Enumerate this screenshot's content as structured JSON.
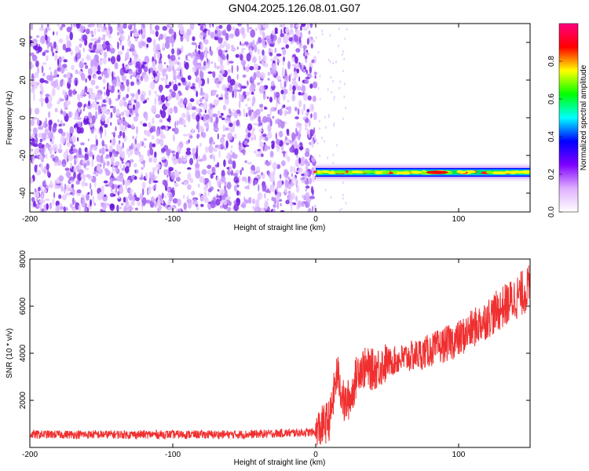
{
  "title": "GN04.2025.126.08.01.G07",
  "colors": {
    "snr_line": "#f03030",
    "noise": "#8a2be2",
    "colormap": [
      "#ffffff",
      "#e0b0ff",
      "#8000ff",
      "#0000ff",
      "#00ffff",
      "#00ff00",
      "#ffff00",
      "#ff0000",
      "#ff0080"
    ]
  },
  "chart_data": [
    {
      "type": "heatmap",
      "xlabel": "Height of straight line (km)",
      "ylabel": "Frequency (Hz)",
      "xlim": [
        -200,
        150
      ],
      "ylim": [
        -50,
        50
      ],
      "xticks": [
        -200,
        -100,
        0,
        100
      ],
      "yticks": [
        -40,
        -20,
        0,
        20,
        40
      ],
      "colorbar": {
        "label": "Normalized spectral amplitude",
        "range": [
          0,
          1
        ],
        "ticks": [
          "0.0",
          "0.2",
          "0.4",
          "0.6",
          "0.8"
        ]
      },
      "noise_region": {
        "x": [
          -200,
          0
        ],
        "y": [
          -50,
          50
        ]
      },
      "signal_band": {
        "x": [
          0,
          150
        ],
        "y_center": -29,
        "width": 3,
        "amplitude": 0.9
      }
    },
    {
      "type": "line",
      "xlabel": "Height of straight line (km)",
      "ylabel": "SNR (10 * v/v)",
      "xlim": [
        -200,
        150
      ],
      "ylim": [
        0,
        8000
      ],
      "xticks": [
        -200,
        -100,
        0,
        100
      ],
      "yticks": [
        2000,
        4000,
        6000,
        8000
      ],
      "trend": {
        "x": [
          -200,
          -100,
          -50,
          0,
          10,
          15,
          20,
          25,
          30,
          40,
          50,
          75,
          100,
          125,
          150
        ],
        "y": [
          550,
          550,
          550,
          650,
          1200,
          3200,
          1800,
          2200,
          3400,
          3300,
          3600,
          4000,
          4600,
          5700,
          6800
        ]
      }
    }
  ]
}
